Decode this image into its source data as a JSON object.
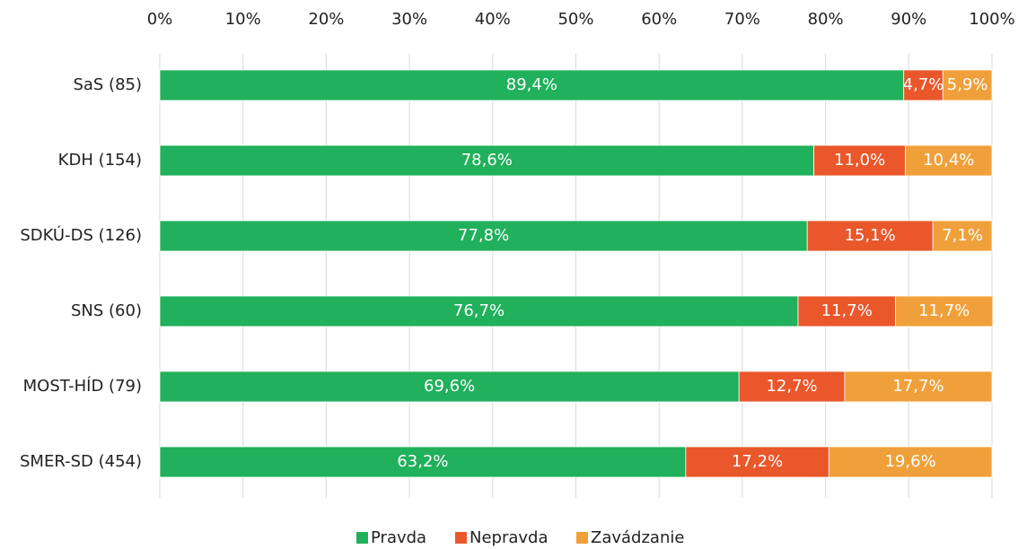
{
  "chart_data": {
    "type": "stacked_barh",
    "categories": [
      "SaS (85)",
      "KDH (154)",
      "SDKÚ-DS (126)",
      "SNS (60)",
      "MOST-HÍD (79)",
      "SMER-SD (454)"
    ],
    "series": [
      {
        "name": "Pravda",
        "color": "#21b05b",
        "values": [
          89.4,
          78.6,
          77.8,
          76.7,
          69.6,
          63.2
        ],
        "value_labels": [
          "89,4%",
          "78,6%",
          "77,8%",
          "76,7%",
          "69,6%",
          "63,2%"
        ]
      },
      {
        "name": "Nepravda",
        "color": "#e9572b",
        "values": [
          4.7,
          11.0,
          15.1,
          11.7,
          12.7,
          17.2
        ],
        "value_labels": [
          "4,7%",
          "11,0%",
          "15,1%",
          "11,7%",
          "12,7%",
          "17,2%"
        ]
      },
      {
        "name": "Zavádzanie",
        "color": "#f0a03a",
        "values": [
          5.9,
          10.4,
          7.1,
          11.7,
          17.7,
          19.6
        ],
        "value_labels": [
          "5,9%",
          "10,4%",
          "7,1%",
          "11,7%",
          "17,7%",
          "19,6%"
        ]
      }
    ],
    "xlim": [
      0,
      100
    ],
    "xticks": [
      {
        "value": 0,
        "label": "0%"
      },
      {
        "value": 10,
        "label": "10%"
      },
      {
        "value": 20,
        "label": "20%"
      },
      {
        "value": 30,
        "label": "30%"
      },
      {
        "value": 40,
        "label": "40%"
      },
      {
        "value": 50,
        "label": "50%"
      },
      {
        "value": 60,
        "label": "60%"
      },
      {
        "value": 70,
        "label": "70%"
      },
      {
        "value": 80,
        "label": "80%"
      },
      {
        "value": 90,
        "label": "90%"
      },
      {
        "value": 100,
        "label": "100%"
      }
    ],
    "grid": true,
    "legend": "bottom"
  }
}
